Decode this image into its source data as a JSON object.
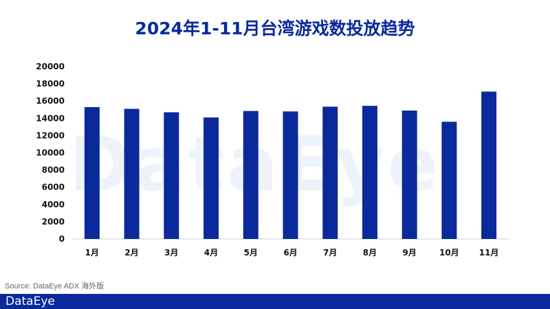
{
  "chart_data": {
    "type": "bar",
    "title": "2024年1-11月台湾游戏数投放趋势",
    "categories": [
      "1月",
      "2月",
      "3月",
      "4月",
      "5月",
      "6月",
      "7月",
      "8月",
      "9月",
      "10月",
      "11月"
    ],
    "values": [
      15300,
      15100,
      14700,
      14100,
      14850,
      14800,
      15350,
      15450,
      14900,
      13600,
      17100
    ],
    "ylim": [
      0,
      20000
    ],
    "yticks": [
      "0",
      "2000",
      "4000",
      "6000",
      "8000",
      "10000",
      "12000",
      "14000",
      "16000",
      "18000",
      "20000"
    ],
    "xlabel": "",
    "ylabel": "",
    "bar_color": "#0a2a9c",
    "grid": false
  },
  "watermark": "DataEye",
  "source": "Source: DataEye ADX 海外版",
  "footer": {
    "brand": "DataEye"
  }
}
